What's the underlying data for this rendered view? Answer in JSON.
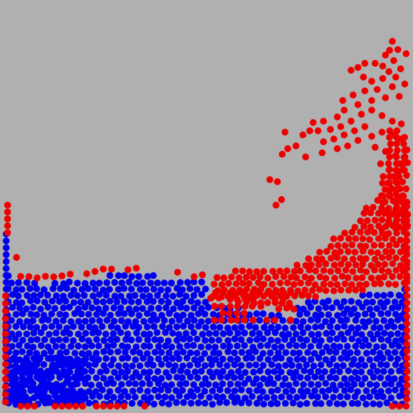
{
  "simulation": {
    "background_color": "#b0b0b0",
    "fluid_a": {
      "color": "#0000ee"
    },
    "fluid_b": {
      "color": "#ee0000"
    }
  }
}
